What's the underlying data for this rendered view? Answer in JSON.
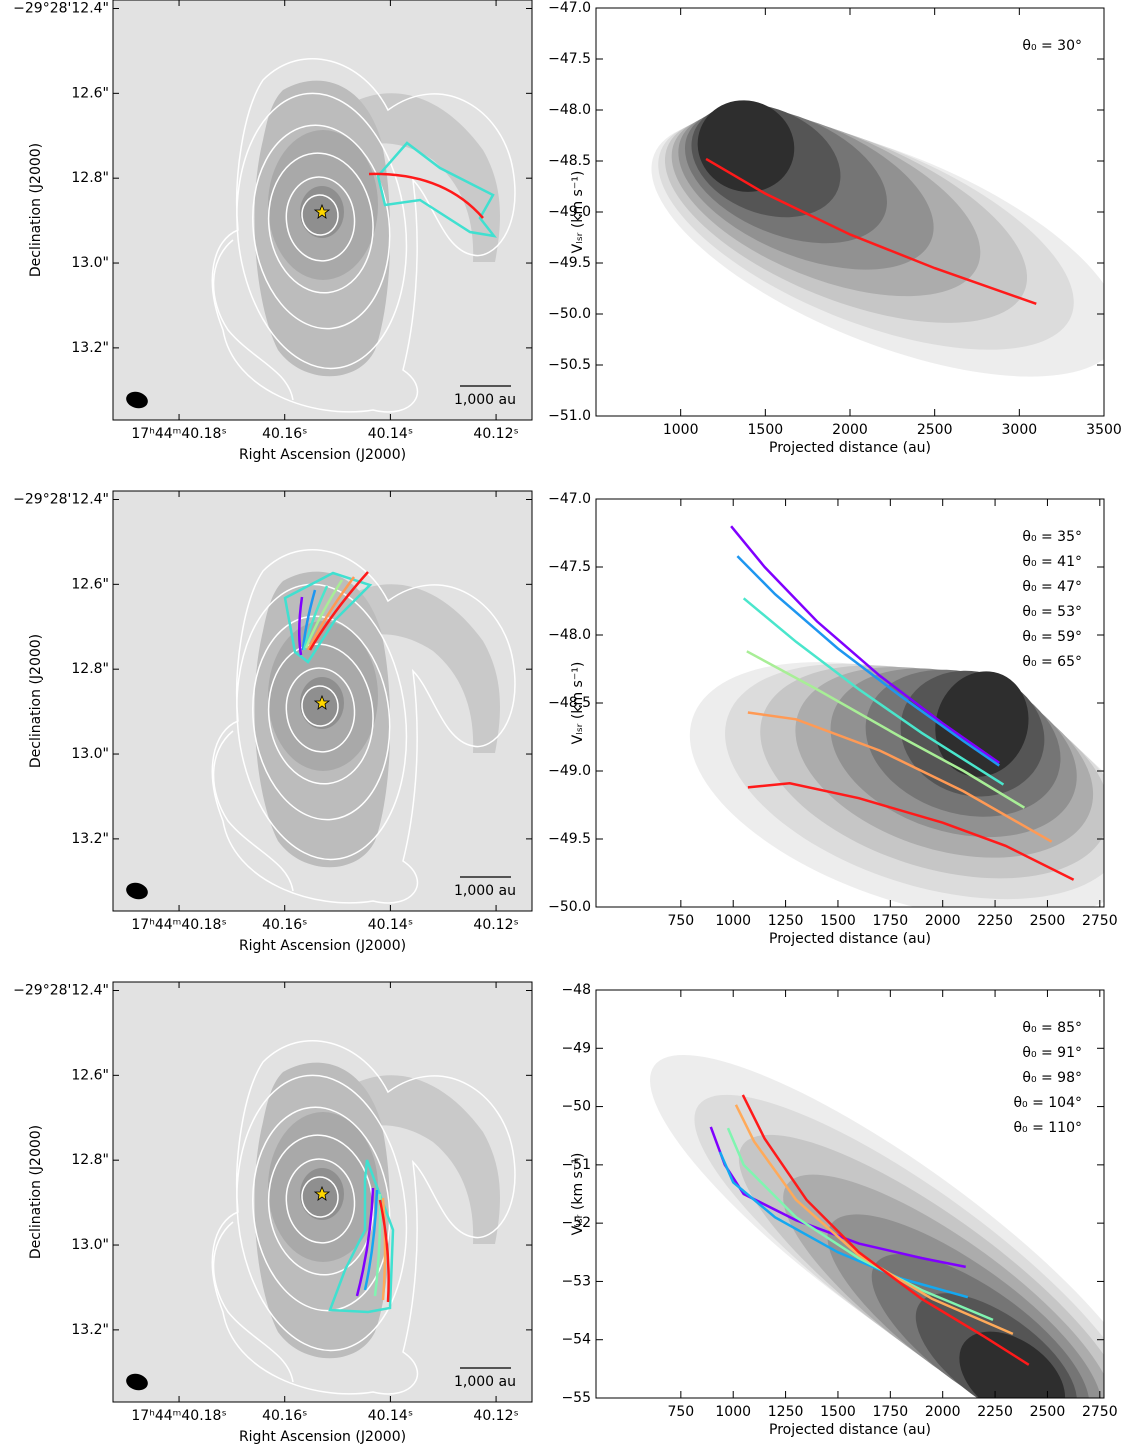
{
  "chart_data": [
    {
      "type": "image",
      "xlabel": "Right Ascension (J2000)",
      "ylabel": "Declination (J2000)",
      "xlim": [
        40.1925,
        40.1132
      ],
      "xticks": [
        {
          "value": 40.18,
          "label": "17ʰ44ᵐ40.18ˢ"
        },
        {
          "value": 40.16,
          "label": "40.16ˢ"
        },
        {
          "value": 40.14,
          "label": "40.14ˢ"
        },
        {
          "value": 40.12,
          "label": "40.12ˢ"
        }
      ],
      "ylim": [
        13.37,
        12.38
      ],
      "yticks": [
        {
          "value": 12.4,
          "label": "−29°28'12.4\""
        },
        {
          "value": 12.6,
          "label": "12.6\""
        },
        {
          "value": 12.8,
          "label": "12.8\""
        },
        {
          "value": 13.0,
          "label": "13.0\""
        },
        {
          "value": 13.2,
          "label": "13.2\""
        }
      ],
      "scalebar_label": "1,000 au",
      "region_color": "#40e0d0"
    },
    {
      "type": "line",
      "xlabel": "Projected distance (au)",
      "ylabel": "Vₗₛᵣ (km s⁻¹)",
      "xlim": [
        500,
        3500
      ],
      "xticks": [
        1000,
        1500,
        2000,
        2500,
        3000,
        3500
      ],
      "ylim": [
        -51,
        -47
      ],
      "yticks": [
        {
          "value": -47,
          "label": "−47.0"
        },
        {
          "value": -47.5,
          "label": "−47.5"
        },
        {
          "value": -48,
          "label": "−48.0"
        },
        {
          "value": -48.5,
          "label": "−48.5"
        },
        {
          "value": -49,
          "label": "−49.0"
        },
        {
          "value": -49.5,
          "label": "−49.5"
        },
        {
          "value": -50,
          "label": "−50.0"
        },
        {
          "value": -50.5,
          "label": "−50.5"
        },
        {
          "value": -51,
          "label": "−51.0"
        }
      ],
      "legend": "upper right",
      "series": [
        {
          "name": "θ₀ = 30°",
          "color": "#ff1a1a",
          "x": [
            1150,
            1500,
            2000,
            2500,
            3100
          ],
          "values": [
            -48.48,
            -48.82,
            -49.22,
            -49.55,
            -49.9
          ]
        }
      ]
    },
    {
      "type": "image",
      "xlabel": "Right Ascension (J2000)",
      "ylabel": "Declination (J2000)",
      "xlim": [
        40.1925,
        40.1132
      ],
      "xticks": [
        {
          "value": 40.18,
          "label": "17ʰ44ᵐ40.18ˢ"
        },
        {
          "value": 40.16,
          "label": "40.16ˢ"
        },
        {
          "value": 40.14,
          "label": "40.14ˢ"
        },
        {
          "value": 40.12,
          "label": "40.12ˢ"
        }
      ],
      "ylim": [
        13.37,
        12.38
      ],
      "yticks": [
        {
          "value": 12.4,
          "label": "−29°28'12.4\""
        },
        {
          "value": 12.6,
          "label": "12.6\""
        },
        {
          "value": 12.8,
          "label": "12.8\""
        },
        {
          "value": 13.0,
          "label": "13.0\""
        },
        {
          "value": 13.2,
          "label": "13.2\""
        }
      ],
      "scalebar_label": "1,000 au",
      "region_color": "#40e0d0"
    },
    {
      "type": "line",
      "xlabel": "Projected distance (au)",
      "ylabel": "Vₗₛᵣ (km s⁻¹)",
      "xlim": [
        345,
        2770
      ],
      "xticks": [
        750,
        1000,
        1250,
        1500,
        1750,
        2000,
        2250,
        2500,
        2750
      ],
      "ylim": [
        -50,
        -47
      ],
      "yticks": [
        {
          "value": -47,
          "label": "−47.0"
        },
        {
          "value": -47.5,
          "label": "−47.5"
        },
        {
          "value": -48,
          "label": "−48.0"
        },
        {
          "value": -48.5,
          "label": "−48.5"
        },
        {
          "value": -49,
          "label": "−49.0"
        },
        {
          "value": -49.5,
          "label": "−49.5"
        },
        {
          "value": -50,
          "label": "−50.0"
        }
      ],
      "legend": "upper right",
      "series": [
        {
          "name": "θ₀ = 35°",
          "color": "#8000ff",
          "x": [
            990,
            1150,
            1400,
            1700,
            2000,
            2270
          ],
          "values": [
            -47.2,
            -47.5,
            -47.9,
            -48.3,
            -48.65,
            -48.94
          ]
        },
        {
          "name": "θ₀ = 41°",
          "color": "#1e96f0",
          "x": [
            1020,
            1200,
            1500,
            1800,
            2100,
            2270
          ],
          "values": [
            -47.42,
            -47.7,
            -48.1,
            -48.45,
            -48.78,
            -48.96
          ]
        },
        {
          "name": "θ₀ = 47°",
          "color": "#4ae6cc",
          "x": [
            1050,
            1300,
            1600,
            1900,
            2290
          ],
          "values": [
            -47.73,
            -48.05,
            -48.4,
            -48.72,
            -49.1
          ]
        },
        {
          "name": "θ₀ = 53°",
          "color": "#a8ee96",
          "x": [
            1065,
            1400,
            1800,
            2100,
            2390
          ],
          "values": [
            -48.12,
            -48.4,
            -48.75,
            -49.0,
            -49.27
          ]
        },
        {
          "name": "θ₀ = 59°",
          "color": "#ff9a55",
          "x": [
            1070,
            1300,
            1700,
            2100,
            2520
          ],
          "values": [
            -48.57,
            -48.62,
            -48.85,
            -49.15,
            -49.52
          ]
        },
        {
          "name": "θ₀ = 65°",
          "color": "#ff1a1a",
          "x": [
            1070,
            1270,
            1600,
            2000,
            2300,
            2625
          ],
          "values": [
            -49.12,
            -49.09,
            -49.2,
            -49.38,
            -49.55,
            -49.8
          ]
        }
      ]
    },
    {
      "type": "image",
      "xlabel": "Right Ascension (J2000)",
      "ylabel": "Declination (J2000)",
      "xlim": [
        40.1925,
        40.1132
      ],
      "xticks": [
        {
          "value": 40.18,
          "label": "17ʰ44ᵐ40.18ˢ"
        },
        {
          "value": 40.16,
          "label": "40.16ˢ"
        },
        {
          "value": 40.14,
          "label": "40.14ˢ"
        },
        {
          "value": 40.12,
          "label": "40.12ˢ"
        }
      ],
      "ylim": [
        13.37,
        12.38
      ],
      "yticks": [
        {
          "value": 12.4,
          "label": "−29°28'12.4\""
        },
        {
          "value": 12.6,
          "label": "12.6\""
        },
        {
          "value": 12.8,
          "label": "12.8\""
        },
        {
          "value": 13.0,
          "label": "13.0\""
        },
        {
          "value": 13.2,
          "label": "13.2\""
        }
      ],
      "scalebar_label": "1,000 au",
      "region_color": "#40e0d0"
    },
    {
      "type": "line",
      "xlabel": "Projected distance (au)",
      "ylabel": "Vₗₛᵣ (km s⁻¹)",
      "xlim": [
        345,
        2770
      ],
      "xticks": [
        750,
        1000,
        1250,
        1500,
        1750,
        2000,
        2250,
        2500,
        2750
      ],
      "ylim": [
        -55,
        -48
      ],
      "yticks": [
        {
          "value": -48,
          "label": "−48"
        },
        {
          "value": -49,
          "label": "−49"
        },
        {
          "value": -50,
          "label": "−50"
        },
        {
          "value": -51,
          "label": "−51"
        },
        {
          "value": -52,
          "label": "−52"
        },
        {
          "value": -53,
          "label": "−53"
        },
        {
          "value": -54,
          "label": "−54"
        },
        {
          "value": -55,
          "label": "−55"
        }
      ],
      "legend": "upper right",
      "series": [
        {
          "name": "θ₀ = 85°",
          "color": "#8000ff",
          "x": [
            893,
            960,
            1050,
            1300,
            1600,
            1900,
            2110
          ],
          "values": [
            -50.35,
            -51.0,
            -51.5,
            -51.95,
            -52.35,
            -52.6,
            -52.75
          ]
        },
        {
          "name": "θ₀ = 91°",
          "color": "#14a8f0",
          "x": [
            937,
            1000,
            1200,
            1500,
            1800,
            2120
          ],
          "values": [
            -50.78,
            -51.3,
            -51.9,
            -52.5,
            -52.95,
            -53.27
          ]
        },
        {
          "name": "θ₀ = 98°",
          "color": "#80f5b0",
          "x": [
            975,
            1050,
            1300,
            1600,
            1900,
            2240
          ],
          "values": [
            -50.37,
            -51.0,
            -51.9,
            -52.6,
            -53.15,
            -53.66
          ]
        },
        {
          "name": "θ₀ = 104°",
          "color": "#ffaa5a",
          "x": [
            1013,
            1100,
            1300,
            1600,
            1950,
            2335
          ],
          "values": [
            -49.97,
            -50.6,
            -51.6,
            -52.55,
            -53.3,
            -53.9
          ]
        },
        {
          "name": "θ₀ = 110°",
          "color": "#ff1a1a",
          "x": [
            1046,
            1150,
            1350,
            1600,
            1900,
            2200,
            2411
          ],
          "values": [
            -49.8,
            -50.55,
            -51.6,
            -52.5,
            -53.3,
            -53.95,
            -54.43
          ]
        }
      ]
    }
  ]
}
